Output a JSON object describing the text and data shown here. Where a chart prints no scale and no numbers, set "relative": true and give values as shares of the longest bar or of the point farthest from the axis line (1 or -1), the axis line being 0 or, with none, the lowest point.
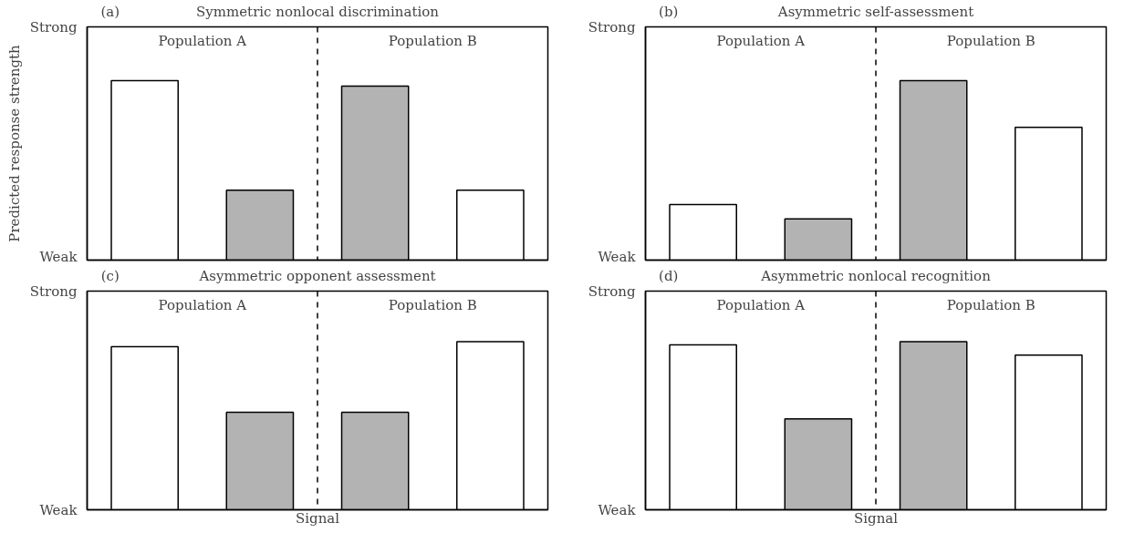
{
  "chart_data": [
    {
      "type": "bar",
      "relative": true,
      "title": "Symmetric nonlocal discrimination",
      "ylabel": "Predicted response strength",
      "categories": [
        "Population A",
        "Population B"
      ],
      "series": [
        {
          "colors": [
            "#ffffff",
            "#b3b3b3"
          ],
          "values": [
            1,
            0.97
          ]
        },
        {
          "colors": [
            "#b3b3b3",
            "#ffffff"
          ],
          "values": [
            0.39,
            0.39
          ]
        }
      ],
      "annotations": [
        "(a)",
        "Strong",
        "Weak"
      ]
    },
    {
      "type": "bar",
      "relative": true,
      "title": "Asymmetric self-assessment",
      "categories": [
        "Population A",
        "Population B"
      ],
      "series": [
        {
          "colors": [
            "#ffffff",
            "#b3b3b3"
          ],
          "values": [
            0.31,
            1
          ]
        },
        {
          "colors": [
            "#b3b3b3",
            "#ffffff"
          ],
          "values": [
            0.23,
            0.74
          ]
        }
      ],
      "annotations": [
        "(b)",
        "Strong",
        "Weak"
      ]
    },
    {
      "type": "bar",
      "relative": true,
      "title": "Asymmetric opponent assessment",
      "xlabel": "Signal",
      "categories": [
        "Population A",
        "Population B"
      ],
      "series": [
        {
          "colors": [
            "#ffffff",
            "#b3b3b3"
          ],
          "values": [
            0.97,
            0.58
          ]
        },
        {
          "colors": [
            "#b3b3b3",
            "#ffffff"
          ],
          "values": [
            0.58,
            1
          ]
        }
      ],
      "annotations": [
        "(c)",
        "Strong",
        "Weak"
      ]
    },
    {
      "type": "bar",
      "relative": true,
      "title": "Asymmetric nonlocal recognition",
      "xlabel": "Signal",
      "categories": [
        "Population A",
        "Population B"
      ],
      "series": [
        {
          "colors": [
            "#ffffff",
            "#b3b3b3"
          ],
          "values": [
            0.98,
            1
          ]
        },
        {
          "colors": [
            "#b3b3b3",
            "#ffffff"
          ],
          "values": [
            0.54,
            0.92
          ]
        }
      ],
      "annotations": [
        "(d)",
        "Strong",
        "Weak"
      ]
    }
  ]
}
